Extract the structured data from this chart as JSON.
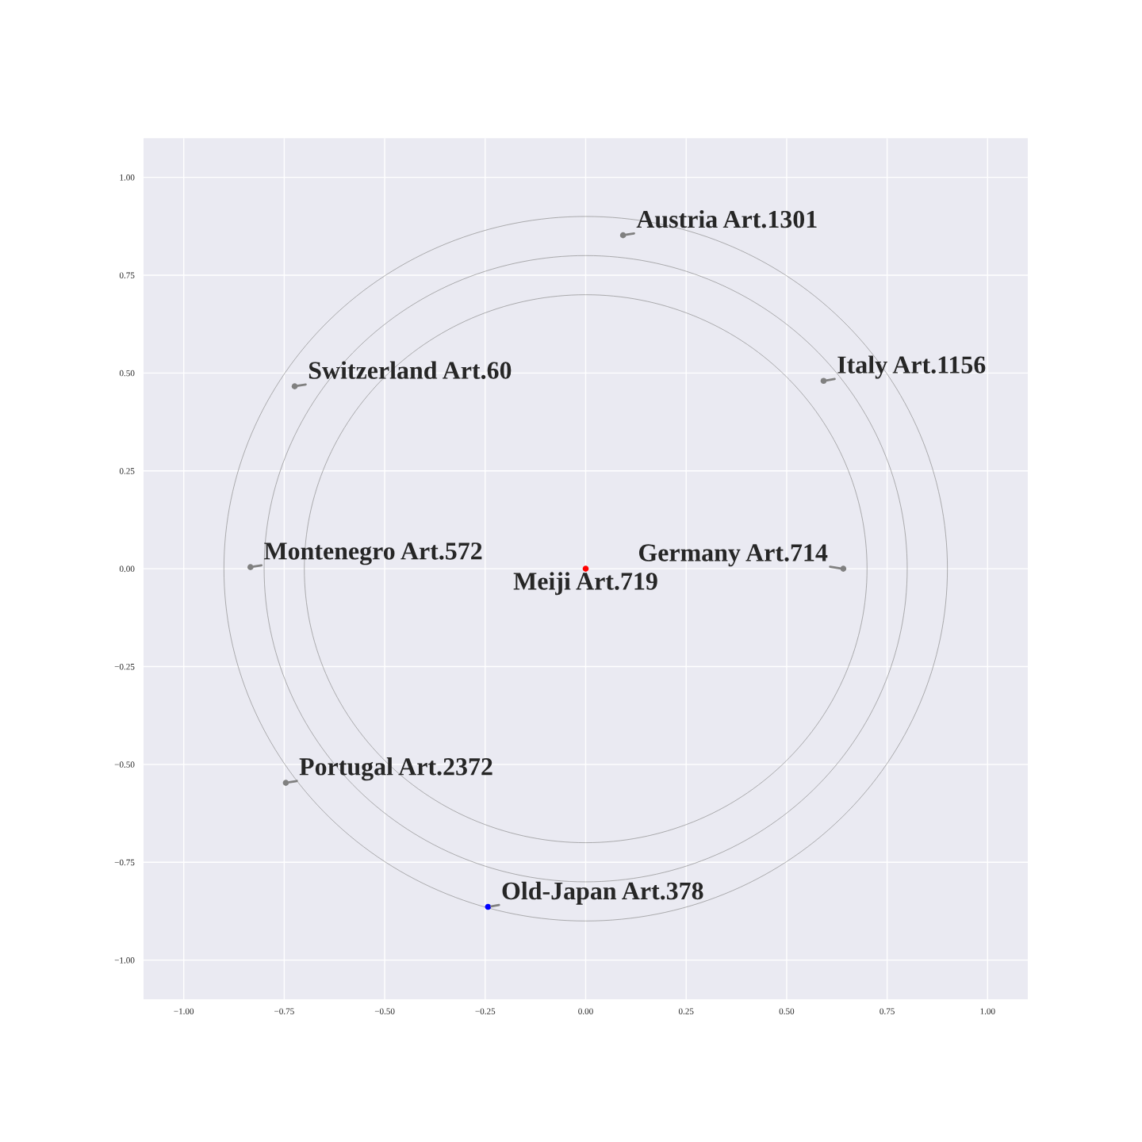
{
  "chart_data": {
    "type": "scatter",
    "xlim": [
      -1.1,
      1.1
    ],
    "ylim": [
      -1.1,
      1.1
    ],
    "xticks": [
      {
        "value": -1,
        "label": "−1.00"
      },
      {
        "value": -0.75,
        "label": "−0.75"
      },
      {
        "value": -0.5,
        "label": "−0.50"
      },
      {
        "value": -0.25,
        "label": "−0.25"
      },
      {
        "value": 0,
        "label": "0.00"
      },
      {
        "value": 0.25,
        "label": "0.25"
      },
      {
        "value": 0.5,
        "label": "0.50"
      },
      {
        "value": 0.75,
        "label": "0.75"
      },
      {
        "value": 1,
        "label": "1.00"
      }
    ],
    "yticks": [
      {
        "value": -1,
        "label": "−1.00"
      },
      {
        "value": -0.75,
        "label": "−0.75"
      },
      {
        "value": -0.5,
        "label": "−0.50"
      },
      {
        "value": -0.25,
        "label": "−0.25"
      },
      {
        "value": 0,
        "label": "0.00"
      },
      {
        "value": 0.25,
        "label": "0.25"
      },
      {
        "value": 0.5,
        "label": "0.50"
      },
      {
        "value": 0.75,
        "label": "0.75"
      },
      {
        "value": 1,
        "label": "1.00"
      }
    ],
    "grid": true,
    "series": [
      {
        "type": "scatter",
        "marker": "circle",
        "x": [
          0,
          0.641,
          0.093,
          0.592,
          -0.724,
          -0.834,
          -0.746,
          -0.243
        ],
        "values": [
          0,
          0,
          0.852,
          0.48,
          0.466,
          0.004,
          -0.547,
          -0.864
        ],
        "colors": [
          "#ff0000",
          "#808080",
          "#808080",
          "#808080",
          "#808080",
          "#808080",
          "#808080",
          "#0000ff"
        ]
      }
    ],
    "annotations": [
      {
        "text": "Meiji Art.719",
        "x": 0,
        "y": 0
      },
      {
        "text": "Germany Art.714",
        "x": 0.641,
        "y": 0
      },
      {
        "text": "Austria Art.1301",
        "x": 0.093,
        "y": 0.852
      },
      {
        "text": "Italy Art.1156",
        "x": 0.592,
        "y": 0.48
      },
      {
        "text": "Switzerland Art.60",
        "x": -0.724,
        "y": 0.466
      },
      {
        "text": "Montenegro Art.572",
        "x": -0.834,
        "y": 0.004
      },
      {
        "text": "Portugal Art.2372",
        "x": -0.746,
        "y": -0.547
      },
      {
        "text": "Old-Japan Art.378",
        "x": -0.243,
        "y": -0.864
      }
    ]
  }
}
